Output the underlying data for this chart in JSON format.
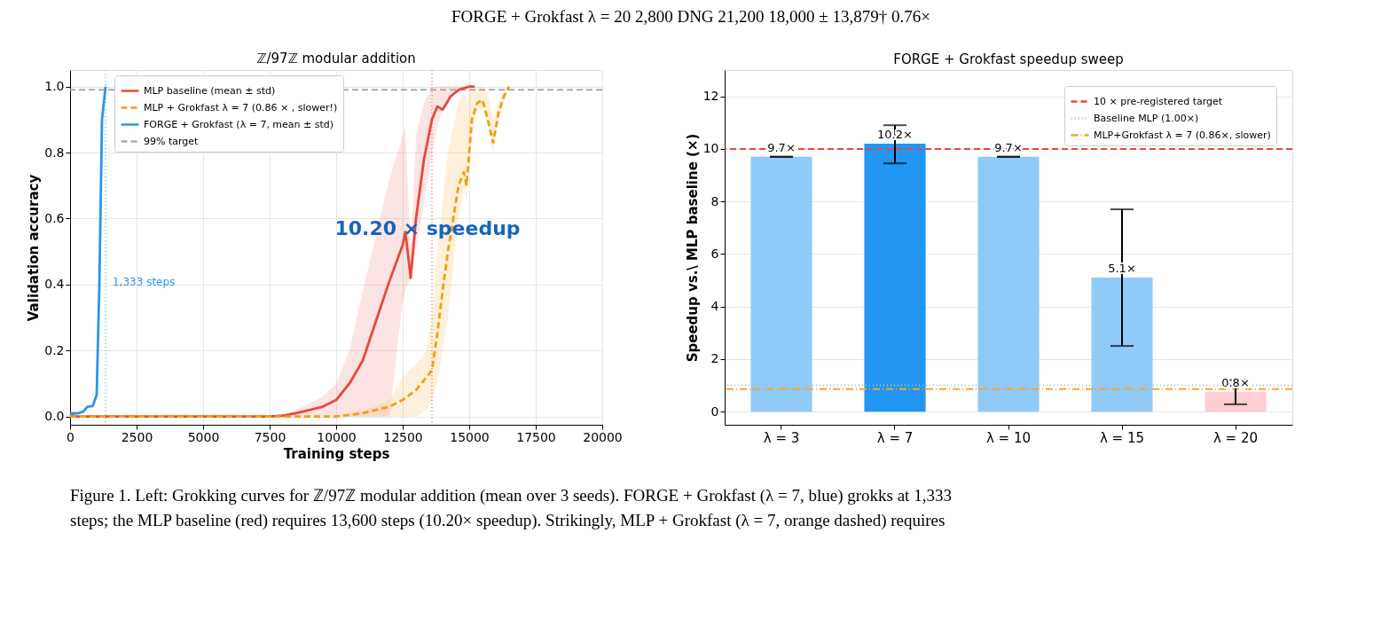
{
  "chart_data": [
    {
      "type": "other",
      "annotations": [
        "FORGE + Grokfast λ = 20    2,800    DNG    21,200    18,000 ± 13,879†    0.76×"
      ]
    },
    {
      "type": "line",
      "title": "ℤ/97ℤ modular addition",
      "xlabel": "Training steps",
      "ylabel": "Validation accuracy",
      "xlim": [
        0,
        20000
      ],
      "xticks": [
        0,
        2500,
        5000,
        7500,
        10000,
        12500,
        15000,
        17500,
        20000
      ],
      "ylim": [
        -0.025,
        1.05
      ],
      "yticks": [
        {
          "value": 0,
          "label": "0.0"
        },
        0.2,
        0.4,
        0.6,
        0.8,
        {
          "value": 1,
          "label": "1.0"
        }
      ],
      "grid": true,
      "legend": "top left",
      "series": [
        {
          "name": "MLP baseline (mean ± std)",
          "color": "#e8473d",
          "line_style": "solid",
          "x": [
            0,
            200,
            2000,
            5000,
            7500,
            8000,
            8500,
            9000,
            9500,
            10000,
            10500,
            11000,
            11500,
            12000,
            12500,
            12600,
            12800,
            13000,
            13300,
            13600,
            13800,
            14000,
            14300,
            14600,
            15000,
            15200
          ],
          "values": [
            0.01,
            0.0,
            0.0,
            0.0,
            0.0,
            0.003,
            0.01,
            0.02,
            0.03,
            0.05,
            0.1,
            0.17,
            0.29,
            0.41,
            0.52,
            0.56,
            0.42,
            0.6,
            0.78,
            0.9,
            0.94,
            0.93,
            0.97,
            0.99,
            1.0,
            1.0
          ],
          "lower": [
            0,
            0,
            0,
            0,
            0,
            0,
            0,
            0,
            0,
            0,
            0,
            0,
            0,
            0,
            0.35,
            0.38,
            0.42,
            0.5,
            0.65,
            0.8,
            0.88,
            0.93,
            0.97,
            0.99,
            1.0,
            1.0
          ],
          "upper": [
            0.01,
            0.0,
            0.0,
            0.0,
            0.0,
            0.005,
            0.02,
            0.04,
            0.06,
            0.1,
            0.2,
            0.38,
            0.55,
            0.72,
            0.85,
            0.88,
            0.5,
            0.85,
            0.95,
            1.0,
            1.0,
            1.0,
            1.0,
            1.0,
            1.0,
            1.0
          ]
        },
        {
          "name": "MLP + Grokfast λ = 7 (0.86 × , slower!)",
          "color": "#f59d0f",
          "line_style": "dashed",
          "x": [
            0,
            200,
            5000,
            10000,
            10500,
            11000,
            11500,
            12000,
            12500,
            13000,
            13400,
            13600,
            13800,
            14000,
            14200,
            14400,
            14600,
            14800,
            14900,
            15100,
            15300,
            15500,
            15700,
            15900,
            16100,
            16300,
            16500
          ],
          "values": [
            0.0,
            0.0,
            0.0,
            0.0,
            0.005,
            0.01,
            0.02,
            0.03,
            0.05,
            0.08,
            0.12,
            0.14,
            0.25,
            0.38,
            0.5,
            0.6,
            0.7,
            0.74,
            0.7,
            0.9,
            0.95,
            0.96,
            0.9,
            0.83,
            0.92,
            0.97,
            1.0
          ],
          "lower": [
            0,
            0,
            0,
            0,
            0,
            0,
            0,
            0,
            0,
            0,
            0.02,
            0.05,
            0.1,
            0.2,
            0.3,
            0.45,
            0.6,
            0.7,
            0.65,
            0.85,
            0.92,
            0.93,
            0.88,
            0.8,
            0.9,
            0.95,
            1.0
          ],
          "upper": [
            0,
            0,
            0,
            0,
            0.01,
            0.02,
            0.03,
            0.05,
            0.12,
            0.16,
            0.2,
            0.3,
            0.5,
            0.65,
            0.8,
            0.88,
            0.95,
            0.98,
            0.95,
            1.0,
            1.0,
            1.0,
            0.98,
            0.9,
            0.95,
            0.99,
            1.0
          ]
        },
        {
          "name": "FORGE + Grokfast (λ = 7, mean ± std)",
          "color": "#2b95e8",
          "line_style": "solid",
          "x": [
            0,
            300,
            500,
            650,
            850,
            1000,
            1100,
            1200,
            1333
          ],
          "values": [
            0.01,
            0.01,
            0.015,
            0.03,
            0.032,
            0.065,
            0.4,
            0.9,
            1.0
          ]
        }
      ],
      "ref_lines": [
        {
          "axis": "y",
          "value": 0.99,
          "label": "99% target",
          "color": "#aaaaaa",
          "line_style": "dashed"
        },
        {
          "axis": "x",
          "value": 1333,
          "label": null,
          "color": "#6fb8f0",
          "line_style": "dotted"
        },
        {
          "axis": "x",
          "value": 13600,
          "label": null,
          "color": "#ef7a72",
          "line_style": "dotted"
        }
      ],
      "annotations": [
        {
          "text": "1,333 steps",
          "x": 1333,
          "y": 0.45
        },
        {
          "text": "10.20 ×  speedup",
          "x": 13600,
          "y": 0.43
        }
      ]
    },
    {
      "type": "bar",
      "title": "FORGE + Grokfast speedup sweep",
      "ylabel": "Speedup vs.\\ MLP baseline (×)",
      "categories": [
        "λ = 3",
        "λ = 7",
        "λ = 10",
        "λ = 15",
        "λ = 20"
      ],
      "values": [
        9.7,
        10.2,
        9.7,
        5.1,
        0.76
      ],
      "colors": [
        "#90caf9",
        "#2196f3",
        "#90caf9",
        "#90caf9",
        "#ffcdd2"
      ],
      "errors": [
        0,
        [
          9.45,
          10.9
        ],
        0,
        [
          2.5,
          7.7
        ],
        [
          0.28,
          1.2
        ]
      ],
      "value_labels": [
        "9.7×",
        "10.2×",
        "9.7×",
        "5.1×",
        "0.8×"
      ],
      "ylim": [
        -0.5,
        13
      ],
      "yticks": [
        0,
        2,
        4,
        6,
        8,
        10,
        12
      ],
      "grid": "y",
      "legend": "top right",
      "ref_lines": [
        {
          "axis": "y",
          "value": 10,
          "label": "10 ×  pre-registered target",
          "color": "#e8473d",
          "line_style": "dashed"
        },
        {
          "axis": "y",
          "value": 1.0,
          "label": "Baseline MLP (1.00×)",
          "color": "#bbbbbb",
          "line_style": "dotted"
        },
        {
          "axis": "y",
          "value": 0.86,
          "label": "MLP+Grokfast λ = 7 (0.86×, slower)",
          "color": "#f0a92a",
          "line_style": "dashdot"
        }
      ]
    },
    {
      "type": "other",
      "annotations": [
        "Figure 1. Left: Grokking curves for ℤ/97ℤ modular addition (mean over 3 seeds). FORGE + Grokfast (λ = 7, blue) grokks at 1,333",
        "steps; the MLP baseline (red) requires 13,600 steps (10.20× speedup). Strikingly, MLP + Grokfast (λ = 7, orange dashed) requires"
      ]
    }
  ]
}
